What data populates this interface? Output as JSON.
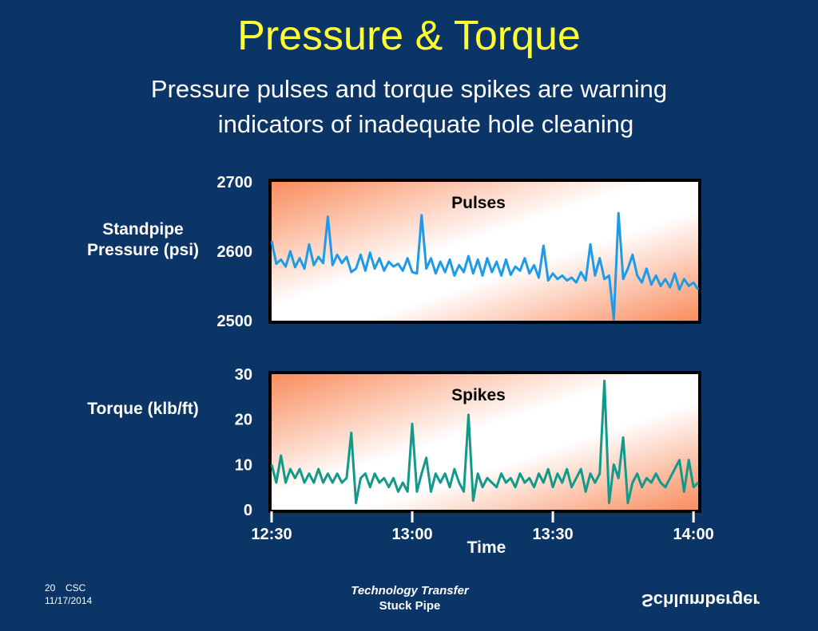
{
  "slide": {
    "title": "Pressure & Torque",
    "subtitle_lines": [
      "Pressure pulses and torque spikes are warning",
      "indicators of inadequate hole cleaning"
    ],
    "footer": {
      "page": "20",
      "org": "CSC",
      "date": "11/17/2014",
      "center_lines": [
        "Technology Transfer",
        "Stuck Pipe"
      ],
      "logo": "Schlumberger"
    }
  },
  "chart_data": [
    {
      "type": "line",
      "annotation": "Pulses",
      "ylabel": "Standpipe Pressure (psi)",
      "xlim": [
        750,
        841
      ],
      "ylim": [
        2500,
        2700
      ],
      "yticks": [
        2500,
        2600,
        2700
      ],
      "grid": false,
      "x": [
        750,
        751,
        752,
        753,
        754,
        755,
        756,
        757,
        758,
        759,
        760,
        761,
        762,
        763,
        764,
        765,
        766,
        767,
        768,
        769,
        770,
        771,
        772,
        773,
        774,
        775,
        776,
        777,
        778,
        779,
        780,
        781,
        782,
        783,
        784,
        785,
        786,
        787,
        788,
        789,
        790,
        791,
        792,
        793,
        794,
        795,
        796,
        797,
        798,
        799,
        800,
        801,
        802,
        803,
        804,
        805,
        806,
        807,
        808,
        809,
        810,
        811,
        812,
        813,
        814,
        815,
        816,
        817,
        818,
        819,
        820,
        821,
        822,
        823,
        824,
        825,
        826,
        827,
        828,
        829,
        830,
        831,
        832,
        833,
        834,
        835,
        836,
        837,
        838,
        839,
        840,
        841
      ],
      "series": [
        {
          "color": "#1e9be8",
          "values": [
            2615,
            2582,
            2588,
            2578,
            2600,
            2577,
            2590,
            2575,
            2610,
            2580,
            2592,
            2583,
            2650,
            2580,
            2595,
            2583,
            2592,
            2570,
            2575,
            2595,
            2572,
            2598,
            2575,
            2590,
            2572,
            2585,
            2578,
            2582,
            2572,
            2590,
            2570,
            2568,
            2652,
            2575,
            2590,
            2568,
            2585,
            2570,
            2588,
            2565,
            2580,
            2570,
            2593,
            2568,
            2588,
            2565,
            2590,
            2570,
            2585,
            2565,
            2588,
            2566,
            2578,
            2572,
            2590,
            2568,
            2580,
            2562,
            2608,
            2558,
            2568,
            2560,
            2565,
            2558,
            2562,
            2555,
            2570,
            2558,
            2610,
            2565,
            2590,
            2560,
            2565,
            2502,
            2655,
            2560,
            2575,
            2595,
            2565,
            2555,
            2575,
            2552,
            2565,
            2550,
            2560,
            2548,
            2568,
            2545,
            2560,
            2550,
            2555,
            2545
          ]
        }
      ]
    },
    {
      "type": "line",
      "annotation": "Spikes",
      "ylabel": "Torque (klb/ft)",
      "xlabel": "Time",
      "xlim": [
        750,
        841
      ],
      "ylim": [
        0,
        30
      ],
      "yticks": [
        0,
        10,
        20,
        30
      ],
      "grid": false,
      "xticks": [
        {
          "value": 750,
          "label": "12:30"
        },
        {
          "value": 780,
          "label": "13:00"
        },
        {
          "value": 810,
          "label": "13:30"
        },
        {
          "value": 840,
          "label": "14:00"
        }
      ],
      "x": [
        750,
        751,
        752,
        753,
        754,
        755,
        756,
        757,
        758,
        759,
        760,
        761,
        762,
        763,
        764,
        765,
        766,
        767,
        768,
        769,
        770,
        771,
        772,
        773,
        774,
        775,
        776,
        777,
        778,
        779,
        780,
        781,
        782,
        783,
        784,
        785,
        786,
        787,
        788,
        789,
        790,
        791,
        792,
        793,
        794,
        795,
        796,
        797,
        798,
        799,
        800,
        801,
        802,
        803,
        804,
        805,
        806,
        807,
        808,
        809,
        810,
        811,
        812,
        813,
        814,
        815,
        816,
        817,
        818,
        819,
        820,
        821,
        822,
        823,
        824,
        825,
        826,
        827,
        828,
        829,
        830,
        831,
        832,
        833,
        834,
        835,
        836,
        837,
        838,
        839,
        840,
        841
      ],
      "series": [
        {
          "color": "#12998a",
          "values": [
            10,
            6,
            12,
            6,
            9,
            7,
            9,
            6,
            8,
            6,
            9,
            6,
            8,
            6,
            8,
            6,
            7,
            17,
            1.5,
            7,
            8,
            5,
            8,
            6,
            7,
            5,
            7,
            4,
            6,
            4,
            19,
            4,
            8,
            11.5,
            4,
            8,
            6,
            8,
            5,
            9,
            6,
            4,
            21,
            2,
            8,
            5,
            7,
            6,
            5,
            8,
            6,
            7,
            5,
            8,
            6,
            7,
            5,
            8,
            6,
            9,
            5,
            8,
            6,
            9,
            5,
            7,
            9,
            4,
            8,
            6,
            8,
            28.5,
            1.5,
            10,
            7,
            16,
            1.5,
            6,
            8,
            5,
            7,
            6,
            8,
            6,
            5,
            7,
            9,
            11,
            4,
            11,
            5,
            6
          ]
        }
      ]
    }
  ]
}
